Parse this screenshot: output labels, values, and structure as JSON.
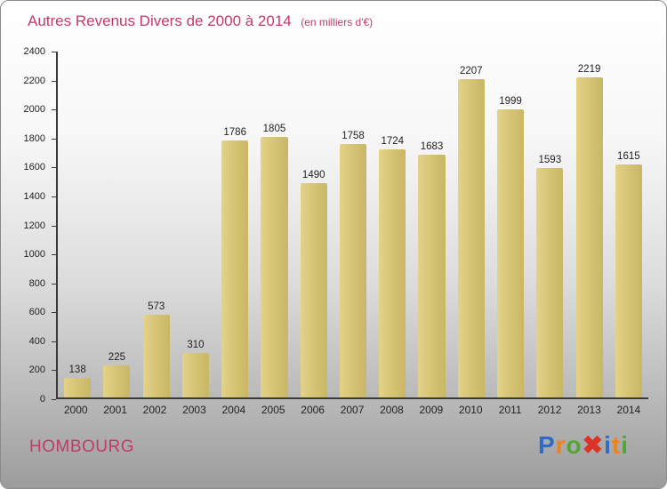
{
  "title": {
    "main": "Autres Revenus Divers de 2000 à 2014",
    "sub": "(en milliers d'€)"
  },
  "footer": {
    "location": "HOMBOURG"
  },
  "logo": {
    "name": "Proxiti",
    "letters": [
      {
        "ch": "P",
        "color": "#2e6bc4"
      },
      {
        "ch": "r",
        "color": "#f0821e"
      },
      {
        "ch": "o",
        "color": "#52a637"
      },
      {
        "ch": "✖",
        "color": "#dd3226"
      },
      {
        "ch": "i",
        "color": "#2e6bc4"
      },
      {
        "ch": "t",
        "color": "#f0821e"
      },
      {
        "ch": "i",
        "color": "#52a637"
      }
    ]
  },
  "colors": {
    "title_pink": "#c23a68",
    "bar_gold": "#d7c577",
    "axis": "#3a3a3a",
    "label_text": "#222222"
  },
  "chart_data": {
    "type": "bar",
    "title": "Autres Revenus Divers de 2000 à 2014",
    "subtitle": "(en milliers d'€)",
    "categories": [
      "2000",
      "2001",
      "2002",
      "2003",
      "2004",
      "2005",
      "2006",
      "2007",
      "2008",
      "2009",
      "2010",
      "2011",
      "2012",
      "2013",
      "2014"
    ],
    "values": [
      138,
      225,
      573,
      310,
      1786,
      1805,
      1490,
      1758,
      1724,
      1683,
      2207,
      1999,
      1593,
      2219,
      1615
    ],
    "xlabel": "",
    "ylabel": "",
    "ylim": [
      0,
      2400
    ],
    "ytick_step": 200,
    "grid": false,
    "legend": "none",
    "bar_color": "#d7c577",
    "data_labels": true
  }
}
